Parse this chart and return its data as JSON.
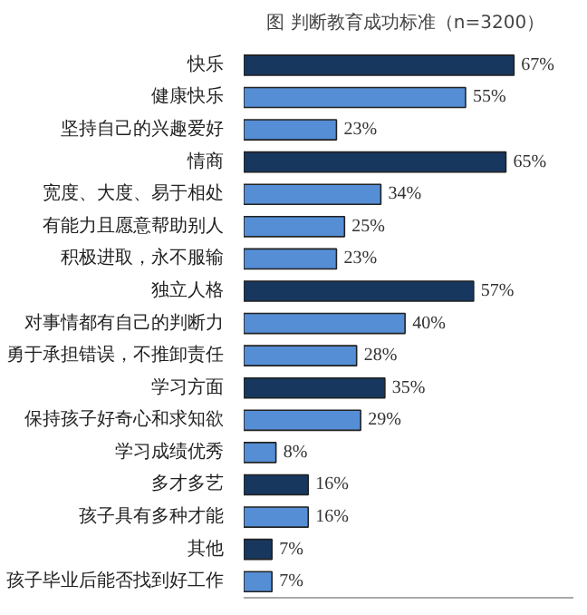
{
  "chart_data": {
    "type": "bar",
    "orientation": "horizontal",
    "title": "图  判断教育成功标准（n=3200）",
    "categories": [
      "快乐",
      "健康快乐",
      "坚持自己的兴趣爱好",
      "情商",
      "宽度、大度、易于相处",
      "有能力且愿意帮助别人",
      "积极进取，永不服输",
      "独立人格",
      "对事情都有自己的判断力",
      "勇于承担错误，不推卸责任",
      "学习方面",
      "保持孩子好奇心和求知欲",
      "学习成绩优秀",
      "多才多艺",
      "孩子具有多种才能",
      "其他",
      "孩子毕业后能否找到好工作"
    ],
    "values": [
      67,
      55,
      23,
      65,
      34,
      25,
      23,
      57,
      40,
      28,
      35,
      29,
      8,
      16,
      16,
      7,
      7
    ],
    "colors": [
      "#17375e",
      "#558ed5",
      "#558ed5",
      "#17375e",
      "#558ed5",
      "#558ed5",
      "#558ed5",
      "#17375e",
      "#558ed5",
      "#558ed5",
      "#17375e",
      "#558ed5",
      "#558ed5",
      "#17375e",
      "#558ed5",
      "#17375e",
      "#558ed5"
    ],
    "value_labels": [
      "67%",
      "55%",
      "23%",
      "65%",
      "34%",
      "25%",
      "23%",
      "57%",
      "40%",
      "28%",
      "35%",
      "29%",
      "8%",
      "16%",
      "16%",
      "7%",
      "7%"
    ],
    "grid": false
  }
}
